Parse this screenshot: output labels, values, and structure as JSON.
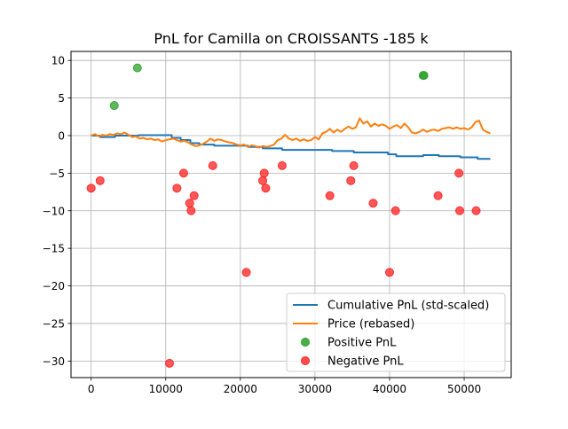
{
  "chart_data": {
    "type": "line",
    "title": "PnL for Camilla on CROISSANTS -185 k",
    "xlabel": "",
    "ylabel": "",
    "xlim": [
      -2700,
      56300
    ],
    "ylim": [
      -32.2,
      11.2
    ],
    "grid": true,
    "legend_placement": "lower right",
    "x_ticks": [
      0,
      10000,
      20000,
      30000,
      40000,
      50000
    ],
    "x_tick_labels": [
      "0",
      "10000",
      "20000",
      "30000",
      "40000",
      "50000"
    ],
    "y_ticks": [
      10,
      5,
      0,
      -5,
      -10,
      -15,
      -20,
      -25,
      -30
    ],
    "y_tick_labels": [
      "10",
      "5",
      "0",
      "−5",
      "−10",
      "−15",
      "−20",
      "−25",
      "−30"
    ],
    "series": [
      {
        "name": "Cumulative PnL (std-scaled)",
        "kind": "line",
        "color": "#1f77b4",
        "points": [
          [
            0,
            0
          ],
          [
            1200,
            0
          ],
          [
            1200,
            -0.2
          ],
          [
            3200,
            -0.2
          ],
          [
            3200,
            0
          ],
          [
            6400,
            0
          ],
          [
            6400,
            0.05
          ],
          [
            10800,
            0.05
          ],
          [
            10800,
            -0.3
          ],
          [
            12000,
            -0.3
          ],
          [
            12000,
            -0.6
          ],
          [
            13300,
            -0.6
          ],
          [
            13300,
            -1.0
          ],
          [
            14500,
            -1.0
          ],
          [
            14500,
            -1.2
          ],
          [
            16500,
            -1.2
          ],
          [
            16500,
            -1.35
          ],
          [
            21000,
            -1.35
          ],
          [
            21000,
            -1.5
          ],
          [
            23000,
            -1.5
          ],
          [
            23000,
            -1.7
          ],
          [
            25600,
            -1.7
          ],
          [
            25600,
            -1.9
          ],
          [
            32300,
            -1.9
          ],
          [
            32300,
            -2.05
          ],
          [
            35200,
            -2.05
          ],
          [
            35200,
            -2.25
          ],
          [
            39800,
            -2.25
          ],
          [
            39800,
            -2.5
          ],
          [
            40900,
            -2.5
          ],
          [
            40900,
            -2.75
          ],
          [
            44500,
            -2.75
          ],
          [
            44500,
            -2.6
          ],
          [
            46600,
            -2.6
          ],
          [
            46600,
            -2.75
          ],
          [
            49500,
            -2.75
          ],
          [
            49500,
            -2.9
          ],
          [
            51800,
            -2.9
          ],
          [
            51800,
            -3.1
          ],
          [
            53500,
            -3.1
          ]
        ]
      },
      {
        "name": "Price (rebased)",
        "kind": "line",
        "color": "#ff7f0e",
        "points": [
          [
            0,
            0
          ],
          [
            500,
            0.2
          ],
          [
            1000,
            -0.1
          ],
          [
            1500,
            0.1
          ],
          [
            2000,
            0.0
          ],
          [
            2500,
            0.2
          ],
          [
            3000,
            0.1
          ],
          [
            3500,
            0.3
          ],
          [
            4000,
            0.2
          ],
          [
            4500,
            0.4
          ],
          [
            5000,
            0.1
          ],
          [
            5500,
            -0.2
          ],
          [
            6000,
            -0.1
          ],
          [
            6500,
            -0.4
          ],
          [
            7000,
            -0.3
          ],
          [
            7500,
            -0.5
          ],
          [
            8000,
            -0.4
          ],
          [
            8500,
            -0.6
          ],
          [
            9000,
            -0.5
          ],
          [
            9500,
            -0.8
          ],
          [
            10000,
            -0.6
          ],
          [
            10500,
            -0.5
          ],
          [
            11000,
            -0.4
          ],
          [
            11500,
            -0.6
          ],
          [
            12000,
            -0.8
          ],
          [
            12500,
            -0.7
          ],
          [
            13000,
            -0.9
          ],
          [
            13500,
            -1.2
          ],
          [
            14000,
            -1.4
          ],
          [
            14500,
            -1.3
          ],
          [
            15000,
            -1.1
          ],
          [
            15500,
            -0.8
          ],
          [
            16000,
            -0.4
          ],
          [
            16500,
            -0.7
          ],
          [
            17000,
            -0.5
          ],
          [
            17500,
            -0.6
          ],
          [
            18000,
            -0.8
          ],
          [
            18500,
            -0.9
          ],
          [
            19000,
            -1.0
          ],
          [
            19500,
            -1.2
          ],
          [
            20000,
            -1.3
          ],
          [
            20500,
            -1.2
          ],
          [
            21000,
            -1.5
          ],
          [
            21500,
            -1.3
          ],
          [
            22000,
            -1.4
          ],
          [
            22500,
            -1.6
          ],
          [
            23000,
            -1.4
          ],
          [
            23500,
            -1.5
          ],
          [
            24000,
            -1.4
          ],
          [
            24500,
            -1.2
          ],
          [
            25000,
            -0.6
          ],
          [
            25500,
            -0.4
          ],
          [
            26000,
            0.1
          ],
          [
            26500,
            -0.4
          ],
          [
            27000,
            -0.6
          ],
          [
            27500,
            -0.4
          ],
          [
            28000,
            -0.7
          ],
          [
            28500,
            -0.5
          ],
          [
            29000,
            -0.7
          ],
          [
            29500,
            -0.6
          ],
          [
            30000,
            -0.2
          ],
          [
            30500,
            -0.5
          ],
          [
            31000,
            0.3
          ],
          [
            31500,
            0.5
          ],
          [
            32000,
            0.9
          ],
          [
            32500,
            0.4
          ],
          [
            33000,
            0.8
          ],
          [
            33500,
            0.5
          ],
          [
            34000,
            0.9
          ],
          [
            34500,
            1.2
          ],
          [
            35000,
            0.9
          ],
          [
            35500,
            1.1
          ],
          [
            36000,
            2.3
          ],
          [
            36500,
            1.6
          ],
          [
            37000,
            1.9
          ],
          [
            37500,
            1.2
          ],
          [
            38000,
            1.6
          ],
          [
            38500,
            1.3
          ],
          [
            39000,
            1.5
          ],
          [
            39500,
            1.3
          ],
          [
            40000,
            0.9
          ],
          [
            40500,
            1.2
          ],
          [
            41000,
            1.4
          ],
          [
            41500,
            1.0
          ],
          [
            42000,
            1.6
          ],
          [
            42500,
            1.1
          ],
          [
            43000,
            0.4
          ],
          [
            43500,
            0.3
          ],
          [
            44000,
            0.5
          ],
          [
            44500,
            0.8
          ],
          [
            45000,
            0.5
          ],
          [
            45500,
            0.7
          ],
          [
            46000,
            0.8
          ],
          [
            46500,
            0.6
          ],
          [
            47000,
            0.9
          ],
          [
            47500,
            1.0
          ],
          [
            48000,
            1.1
          ],
          [
            48500,
            0.9
          ],
          [
            49000,
            1.1
          ],
          [
            49500,
            0.9
          ],
          [
            50000,
            1.0
          ],
          [
            50500,
            0.8
          ],
          [
            51000,
            1.1
          ],
          [
            51500,
            1.8
          ],
          [
            52000,
            2.0
          ],
          [
            52500,
            0.8
          ],
          [
            53000,
            0.5
          ],
          [
            53500,
            0.3
          ]
        ]
      },
      {
        "name": "Positive PnL",
        "kind": "scatter",
        "color": "#2ca02c",
        "points": [
          [
            3100,
            4
          ],
          [
            6200,
            9
          ],
          [
            44500,
            8
          ],
          [
            44600,
            8
          ]
        ]
      },
      {
        "name": "Negative PnL",
        "kind": "scatter",
        "color": "#ff2020",
        "points": [
          [
            0,
            -7
          ],
          [
            1200,
            -6
          ],
          [
            10500,
            -30.3
          ],
          [
            11500,
            -7
          ],
          [
            12400,
            -5
          ],
          [
            13200,
            -9
          ],
          [
            13400,
            -10
          ],
          [
            13800,
            -8
          ],
          [
            16300,
            -4
          ],
          [
            20800,
            -18.2
          ],
          [
            23000,
            -6
          ],
          [
            23200,
            -5
          ],
          [
            23400,
            -7
          ],
          [
            25600,
            -4
          ],
          [
            32000,
            -8
          ],
          [
            34800,
            -6
          ],
          [
            35200,
            -4
          ],
          [
            37800,
            -9
          ],
          [
            40000,
            -18.2
          ],
          [
            40800,
            -10
          ],
          [
            46500,
            -8
          ],
          [
            49300,
            -5
          ],
          [
            49400,
            -10
          ],
          [
            51600,
            -10
          ]
        ]
      }
    ]
  }
}
